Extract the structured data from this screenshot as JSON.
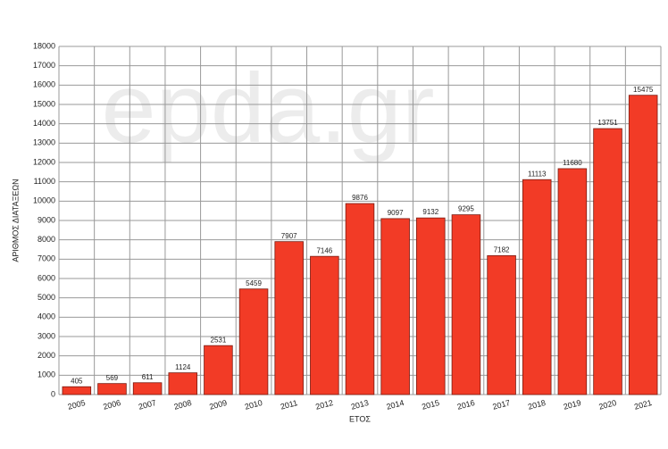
{
  "chart_data": {
    "type": "bar",
    "watermark": "epda.gr",
    "xlabel": "ΕΤΟΣ",
    "ylabel": "ΑΡΙΘΜΟΣ ΔΙΑΤΑΞΕΩΝ",
    "categories": [
      "2005",
      "2006",
      "2007",
      "2008",
      "2009",
      "2010",
      "2011",
      "2012",
      "2013",
      "2014",
      "2015",
      "2016",
      "2017",
      "2018",
      "2019",
      "2020",
      "2021"
    ],
    "values": [
      405,
      569,
      611,
      1124,
      2531,
      5459,
      7907,
      7146,
      9876,
      9097,
      9132,
      9295,
      7182,
      11113,
      11680,
      13751,
      15475
    ],
    "color": "#f23b26",
    "ylim": [
      0,
      18000
    ],
    "yticks": [
      0,
      1000,
      2000,
      3000,
      4000,
      5000,
      6000,
      7000,
      8000,
      9000,
      10000,
      11000,
      12000,
      13000,
      14000,
      15000,
      16000,
      17000,
      18000
    ],
    "grid": true
  }
}
